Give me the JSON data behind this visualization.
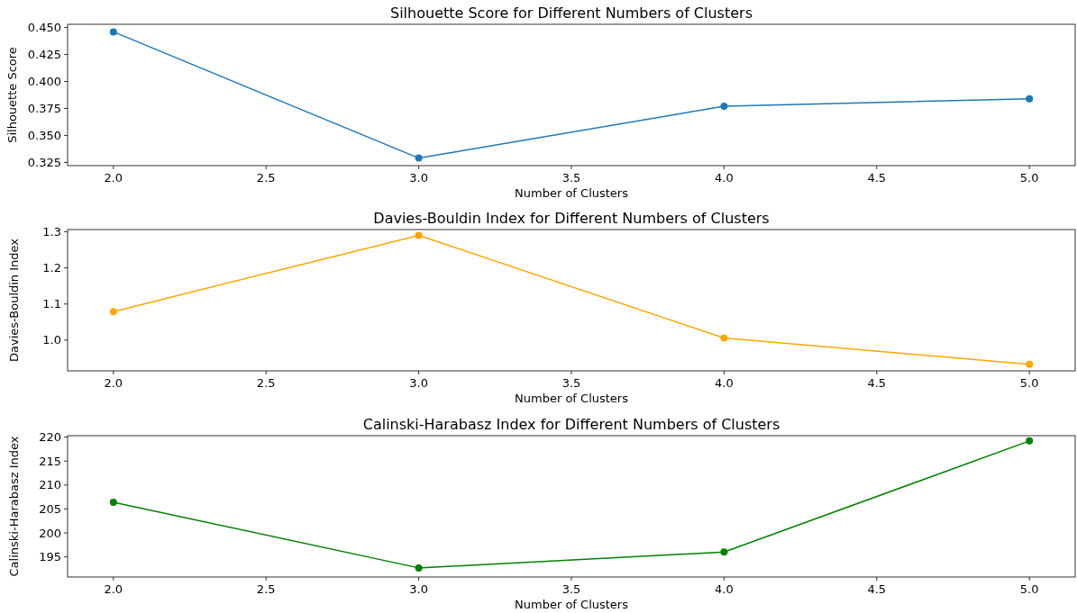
{
  "chart_data": [
    {
      "type": "line",
      "title": "Silhouette Score for Different Numbers of Clusters",
      "xlabel": "Number of Clusters",
      "ylabel": "Silhouette Score",
      "marker": "circle",
      "color": "#1f77b4",
      "x": [
        2,
        3,
        4,
        5
      ],
      "values": [
        0.446,
        0.329,
        0.377,
        0.384
      ],
      "xlim": [
        1.85,
        5.15
      ],
      "xticks": [
        {
          "value": 2,
          "label": "2.0"
        },
        {
          "value": 2.5,
          "label": "2.5"
        },
        {
          "value": 3,
          "label": "3.0"
        },
        {
          "value": 3.5,
          "label": "3.5"
        },
        {
          "value": 4,
          "label": "4.0"
        },
        {
          "value": 4.5,
          "label": "4.5"
        },
        {
          "value": 5,
          "label": "5.0"
        }
      ],
      "ylim": [
        0.322,
        0.453
      ],
      "yticks": [
        {
          "value": 0.325,
          "label": "0.325"
        },
        {
          "value": 0.35,
          "label": "0.350"
        },
        {
          "value": 0.375,
          "label": "0.375"
        },
        {
          "value": 0.4,
          "label": "0.400"
        },
        {
          "value": 0.425,
          "label": "0.425"
        },
        {
          "value": 0.45,
          "label": "0.450"
        }
      ]
    },
    {
      "type": "line",
      "title": "Davies-Bouldin Index for Different Numbers of Clusters",
      "xlabel": "Number of Clusters",
      "ylabel": "Davies-Bouldin Index",
      "marker": "circle",
      "color": "#ffa500",
      "x": [
        2,
        3,
        4,
        5
      ],
      "values": [
        1.079,
        1.29,
        1.006,
        0.933
      ],
      "xlim": [
        1.85,
        5.15
      ],
      "xticks": [
        {
          "value": 2,
          "label": "2.0"
        },
        {
          "value": 2.5,
          "label": "2.5"
        },
        {
          "value": 3,
          "label": "3.0"
        },
        {
          "value": 3.5,
          "label": "3.5"
        },
        {
          "value": 4,
          "label": "4.0"
        },
        {
          "value": 4.5,
          "label": "4.5"
        },
        {
          "value": 5,
          "label": "5.0"
        }
      ],
      "ylim": [
        0.915,
        1.306
      ],
      "yticks": [
        {
          "value": 1,
          "label": "1.0"
        },
        {
          "value": 1.1,
          "label": "1.1"
        },
        {
          "value": 1.2,
          "label": "1.2"
        },
        {
          "value": 1.3,
          "label": "1.3"
        }
      ]
    },
    {
      "type": "line",
      "title": "Calinski-Harabasz Index for Different Numbers of Clusters",
      "xlabel": "Number of Clusters",
      "ylabel": "Calinski-Harabasz Index",
      "marker": "circle",
      "color": "#008000",
      "x": [
        2,
        3,
        4,
        5
      ],
      "values": [
        206.4,
        192.7,
        196.0,
        219.2
      ],
      "xlim": [
        1.85,
        5.15
      ],
      "xticks": [
        {
          "value": 2,
          "label": "2.0"
        },
        {
          "value": 2.5,
          "label": "2.5"
        },
        {
          "value": 3,
          "label": "3.0"
        },
        {
          "value": 3.5,
          "label": "3.5"
        },
        {
          "value": 4,
          "label": "4.0"
        },
        {
          "value": 4.5,
          "label": "4.5"
        },
        {
          "value": 5,
          "label": "5.0"
        }
      ],
      "ylim": [
        190.8,
        220.3
      ],
      "yticks": [
        195,
        200,
        205,
        210,
        215,
        220
      ]
    }
  ]
}
